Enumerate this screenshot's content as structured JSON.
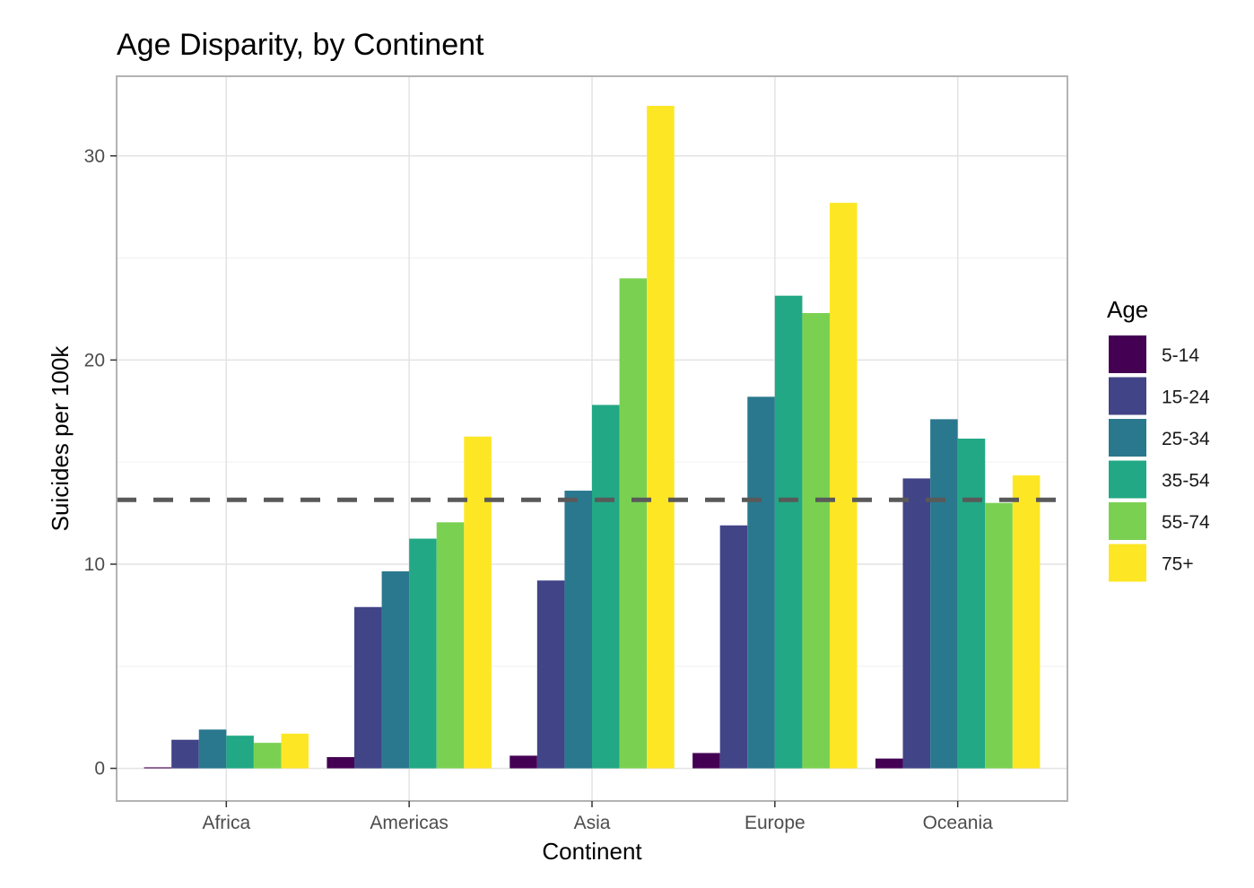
{
  "chart_data": {
    "type": "bar",
    "title": "Age Disparity, by Continent",
    "xlabel": "Continent",
    "ylabel": "Suicides per 100k",
    "categories": [
      "Africa",
      "Americas",
      "Asia",
      "Europe",
      "Oceania"
    ],
    "series": [
      {
        "name": "5-14",
        "color": "#440154",
        "values": [
          0.05,
          0.55,
          0.62,
          0.75,
          0.48
        ]
      },
      {
        "name": "15-24",
        "color": "#414487",
        "values": [
          1.4,
          7.9,
          9.2,
          11.9,
          14.2
        ]
      },
      {
        "name": "25-34",
        "color": "#2a788e",
        "values": [
          1.9,
          9.65,
          13.6,
          18.2,
          17.1
        ]
      },
      {
        "name": "35-54",
        "color": "#22a884",
        "values": [
          1.6,
          11.25,
          17.8,
          23.15,
          16.15
        ]
      },
      {
        "name": "55-74",
        "color": "#7ad151",
        "values": [
          1.25,
          12.05,
          24.0,
          22.3,
          13.0
        ]
      },
      {
        "name": "75+",
        "color": "#fde725",
        "values": [
          1.7,
          16.25,
          32.45,
          27.7,
          14.35
        ]
      }
    ],
    "yticks": [
      0,
      10,
      20,
      30
    ],
    "ylim": [
      -1.6,
      33.9
    ],
    "reference_line": {
      "y": 13.15,
      "style": "dashed"
    },
    "legend": {
      "title": "Age",
      "placement": "right"
    },
    "grid": true
  }
}
